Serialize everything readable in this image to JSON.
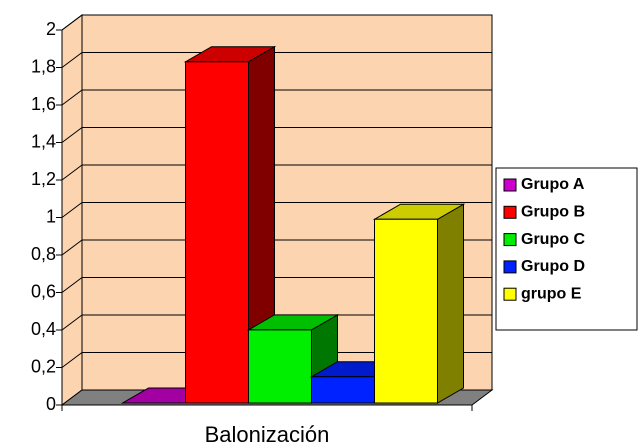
{
  "chart_data": {
    "type": "bar",
    "x_label": "Balonización",
    "categories": [
      "Balonización"
    ],
    "series": [
      {
        "name": "Grupo A",
        "color": "#cc00cc",
        "values": [
          0
        ]
      },
      {
        "name": "Grupo B",
        "color": "#ff0000",
        "values": [
          1.82
        ]
      },
      {
        "name": "Grupo C",
        "color": "#00ee00",
        "values": [
          0.39
        ]
      },
      {
        "name": "Grupo D",
        "color": "#0022ff",
        "values": [
          0.14
        ]
      },
      {
        "name": "grupo E",
        "color": "#ffff00",
        "values": [
          0.98
        ]
      }
    ],
    "ylim": [
      0,
      2
    ],
    "yticks": [
      0,
      {
        "value": 0.2,
        "label": "0,2"
      },
      {
        "value": 0.4,
        "label": "0,4"
      },
      {
        "value": 0.6,
        "label": "0,6"
      },
      {
        "value": 0.8,
        "label": "0,8"
      },
      1,
      {
        "value": 1.2,
        "label": "1,2"
      },
      {
        "value": 1.4,
        "label": "1,4"
      },
      {
        "value": 1.6,
        "label": "1,6"
      },
      {
        "value": 1.8,
        "label": "1,8"
      },
      2
    ],
    "grid": true,
    "legend": "right"
  }
}
